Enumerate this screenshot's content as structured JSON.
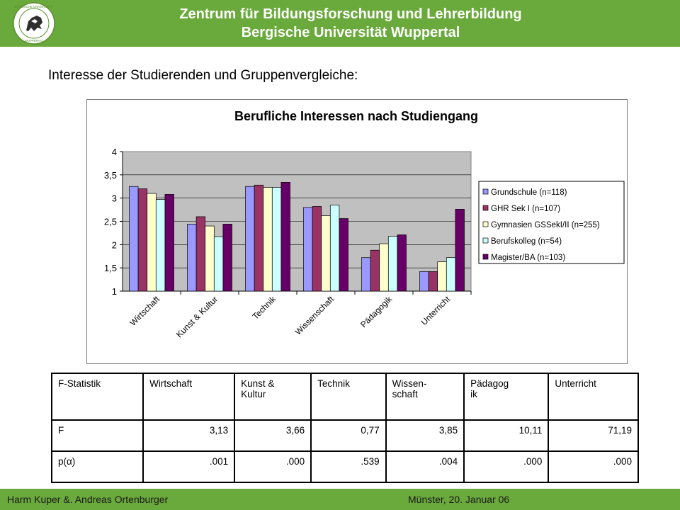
{
  "header": {
    "title_line1": "Zentrum für Bildungsforschung und Lehrerbildung",
    "title_line2": "Bergische Universität Wuppertal",
    "logo_text": "BERGISCHE UNIVERSITÄT WUPPERTAL",
    "color": "#6aa93b"
  },
  "slide": {
    "subtitle": "Interesse der Studierenden und Gruppenvergleiche:"
  },
  "chart_data": {
    "type": "bar",
    "title": "Berufliche Interessen nach Studiengang",
    "xlabel": "",
    "ylabel": "",
    "ylim": [
      1,
      4
    ],
    "yticks": [
      "1",
      "1,5",
      "2",
      "2,5",
      "3",
      "3,5",
      "4"
    ],
    "categories": [
      "Wirtschaft",
      "Kunst & Kultur",
      "Technik",
      "Wissenschaft",
      "Pädagogik",
      "Unterricht"
    ],
    "series": [
      {
        "name": "Grundschule (n=118)",
        "color": "#9999ff",
        "values": [
          3.25,
          2.44,
          3.25,
          2.8,
          1.72,
          1.42
        ]
      },
      {
        "name": "GHR Sek I (n=107)",
        "color": "#993366",
        "values": [
          3.2,
          2.6,
          3.28,
          2.82,
          1.88,
          1.42
        ]
      },
      {
        "name": "Gymnasien GSSekI/II (n=255)",
        "color": "#ffffcc",
        "values": [
          3.1,
          2.4,
          3.23,
          2.62,
          2.02,
          1.63
        ]
      },
      {
        "name": "Berufskolleg (n=54)",
        "color": "#ccffff",
        "values": [
          2.97,
          2.17,
          3.23,
          2.85,
          2.18,
          1.72
        ]
      },
      {
        "name": "Magister/BA (n=103)",
        "color": "#660066",
        "values": [
          3.08,
          2.44,
          3.34,
          2.56,
          2.21,
          2.76
        ]
      }
    ],
    "plot_background": "#c0c0c0",
    "grid": true,
    "legend_position": "right"
  },
  "table": {
    "header": [
      "F-Statistik",
      "Wirtschaft",
      "Kunst & Kultur",
      "Technik",
      "Wissen-schaft",
      "Pädagogik",
      "Unterricht"
    ],
    "header_display": [
      "F-Statistik",
      "Wirtschaft",
      "Kunst &\nKultur",
      "Technik",
      "Wissen-\nschaft",
      "Pädagog\nik",
      "Unterricht"
    ],
    "rows": [
      {
        "label": "F",
        "values": [
          "3,13",
          "3,66",
          "0,77",
          "3,85",
          "10,11",
          "71,19"
        ]
      },
      {
        "label": "p(α)",
        "values": [
          ".001",
          ".000",
          ".539",
          ".004",
          ".000",
          ".000"
        ]
      }
    ]
  },
  "footer": {
    "authors": "Harm Kuper &. Andreas Ortenburger",
    "place_date": "Münster, 20. Januar 06"
  }
}
